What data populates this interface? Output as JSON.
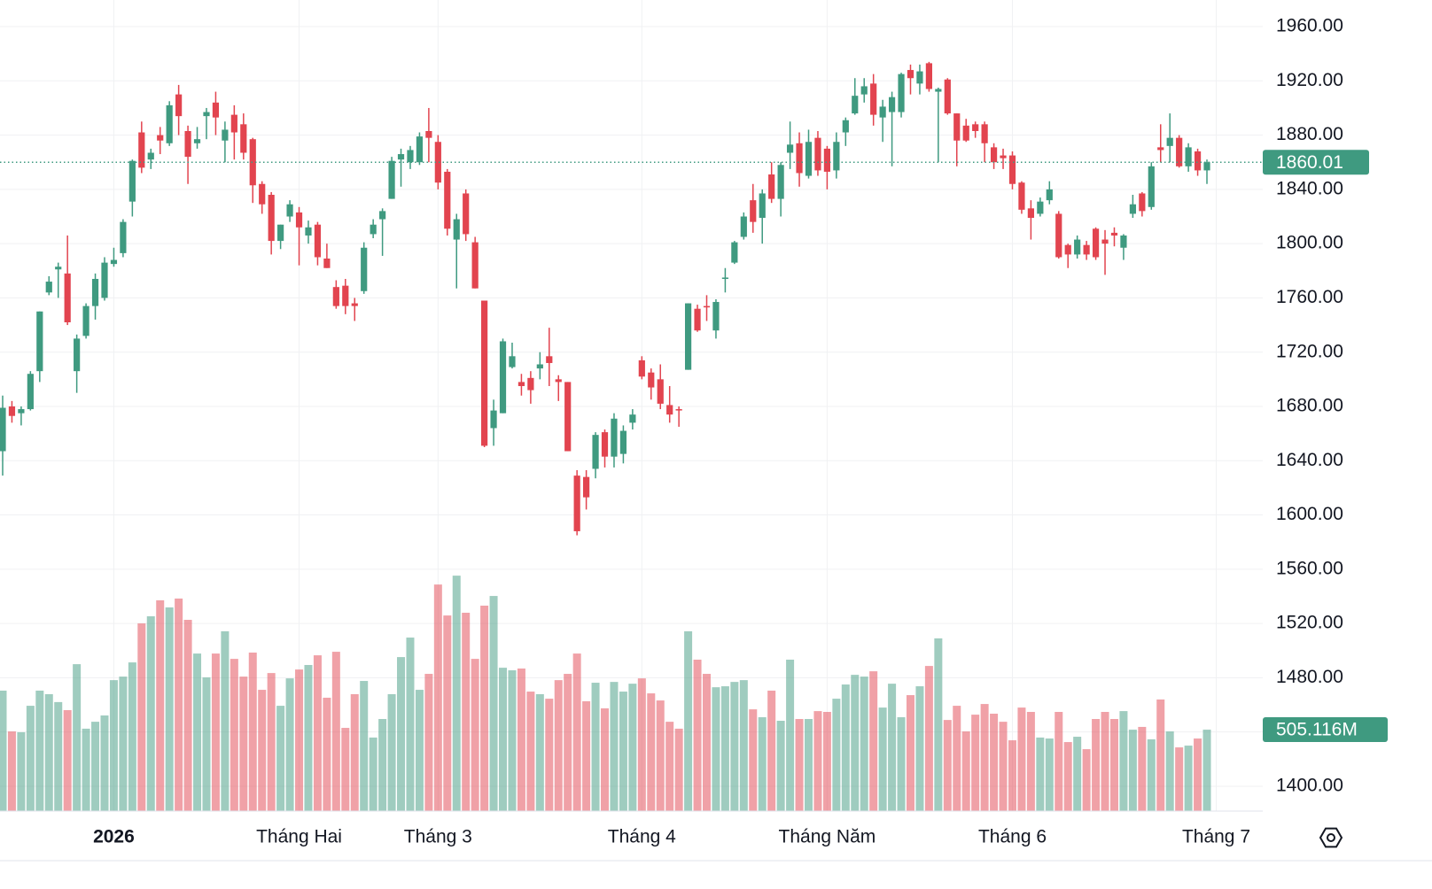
{
  "chart_data": {
    "type": "candlestick",
    "open": [
      1647,
      1680,
      1675,
      1678,
      1706,
      1764,
      1781,
      1778,
      1706,
      1732,
      1754,
      1760,
      1785,
      1793,
      1831,
      1882,
      1862,
      1880,
      1874,
      1910,
      1883,
      1874,
      1894,
      1904,
      1876,
      1895,
      1888,
      1877,
      1844,
      1836,
      1802,
      1820,
      1823,
      1806,
      1814,
      1789,
      1768,
      1769,
      1756,
      1765,
      1807,
      1818,
      1833,
      1862,
      1860,
      1860,
      1883,
      1875,
      1853,
      1803,
      1837,
      1801,
      1758,
      1664,
      1675,
      1709,
      1698,
      1701,
      1708,
      1717,
      1700,
      1698,
      1629,
      1628,
      1634,
      1661,
      1643,
      1645,
      1668,
      1714,
      1705,
      1700,
      1681,
      1678,
      1707,
      1752,
      1754,
      1736,
      1774,
      1786,
      1805,
      1832,
      1819,
      1851,
      1833,
      1867,
      1874,
      1850,
      1878,
      1870,
      1854,
      1882,
      1896,
      1910,
      1918,
      1893,
      1897,
      1897,
      1928,
      1918,
      1933,
      1912,
      1921,
      1896,
      1887,
      1888,
      1888,
      1871,
      1865,
      1865,
      1845,
      1826,
      1822,
      1832,
      1822,
      1799,
      1792,
      1799,
      1811,
      1803,
      1808,
      1797,
      1822,
      1837,
      1827,
      1871,
      1872,
      1878,
      1857,
      1868,
      1854
    ],
    "high": [
      1688,
      1684,
      1680,
      1706,
      1750,
      1776,
      1786,
      1806,
      1733,
      1756,
      1778,
      1790,
      1797,
      1818,
      1862,
      1890,
      1870,
      1886,
      1905,
      1917,
      1887,
      1886,
      1900,
      1912,
      1890,
      1902,
      1896,
      1878,
      1846,
      1838,
      1814,
      1832,
      1827,
      1817,
      1816,
      1800,
      1773,
      1774,
      1760,
      1801,
      1818,
      1826,
      1864,
      1870,
      1872,
      1882,
      1900,
      1880,
      1855,
      1822,
      1840,
      1805,
      1758,
      1685,
      1730,
      1727,
      1704,
      1706,
      1720,
      1738,
      1703,
      1698,
      1633,
      1633,
      1661,
      1663,
      1675,
      1666,
      1678,
      1717,
      1708,
      1711,
      1695,
      1680,
      1756,
      1755,
      1762,
      1759,
      1782,
      1802,
      1823,
      1844,
      1840,
      1860,
      1860,
      1890,
      1882,
      1884,
      1883,
      1872,
      1882,
      1893,
      1922,
      1922,
      1925,
      1906,
      1912,
      1926,
      1932,
      1932,
      1934,
      1915,
      1922,
      1896,
      1892,
      1890,
      1890,
      1874,
      1870,
      1868,
      1846,
      1832,
      1834,
      1846,
      1824,
      1800,
      1806,
      1802,
      1812,
      1810,
      1812,
      1807,
      1836,
      1838,
      1860,
      1888,
      1896,
      1880,
      1874,
      1870,
      1862
    ],
    "low": [
      1629,
      1668,
      1666,
      1677,
      1698,
      1762,
      1760,
      1740,
      1690,
      1730,
      1744,
      1758,
      1783,
      1790,
      1820,
      1852,
      1855,
      1866,
      1872,
      1880,
      1844,
      1870,
      1877,
      1880,
      1860,
      1862,
      1862,
      1830,
      1822,
      1792,
      1796,
      1816,
      1784,
      1800,
      1784,
      1782,
      1752,
      1748,
      1743,
      1763,
      1804,
      1791,
      1833,
      1842,
      1855,
      1858,
      1860,
      1840,
      1806,
      1767,
      1802,
      1767,
      1650,
      1651,
      1675,
      1708,
      1688,
      1682,
      1700,
      1695,
      1684,
      1647,
      1585,
      1604,
      1627,
      1635,
      1635,
      1638,
      1663,
      1700,
      1685,
      1678,
      1668,
      1665,
      1707,
      1735,
      1743,
      1730,
      1764,
      1785,
      1803,
      1808,
      1800,
      1830,
      1820,
      1855,
      1842,
      1848,
      1850,
      1840,
      1848,
      1872,
      1895,
      1904,
      1887,
      1875,
      1857,
      1893,
      1910,
      1910,
      1912,
      1860,
      1895,
      1857,
      1875,
      1878,
      1860,
      1855,
      1855,
      1840,
      1822,
      1803,
      1820,
      1829,
      1789,
      1782,
      1789,
      1788,
      1788,
      1777,
      1798,
      1788,
      1819,
      1820,
      1825,
      1860,
      1860,
      1856,
      1853,
      1850,
      1844
    ],
    "close": [
      1679,
      1673,
      1678,
      1704,
      1750,
      1772,
      1783,
      1742,
      1730,
      1754,
      1774,
      1786,
      1788,
      1816,
      1861,
      1856,
      1867,
      1876,
      1902,
      1894,
      1864,
      1877,
      1897,
      1893,
      1884,
      1882,
      1867,
      1843,
      1829,
      1802,
      1814,
      1829,
      1812,
      1812,
      1790,
      1782,
      1754,
      1754,
      1754,
      1797,
      1814,
      1824,
      1861,
      1866,
      1869,
      1879,
      1878,
      1845,
      1811,
      1818,
      1807,
      1767,
      1651,
      1677,
      1728,
      1717,
      1695,
      1692,
      1711,
      1712,
      1698,
      1647,
      1588,
      1613,
      1659,
      1643,
      1671,
      1662,
      1674,
      1702,
      1694,
      1682,
      1674,
      1677,
      1756,
      1736,
      1753,
      1757,
      1775,
      1801,
      1820,
      1816,
      1837,
      1833,
      1858,
      1873,
      1852,
      1875,
      1854,
      1853,
      1875,
      1891,
      1909,
      1916,
      1895,
      1901,
      1908,
      1925,
      1922,
      1927,
      1914,
      1914,
      1896,
      1876,
      1876,
      1883,
      1874,
      1860,
      1863,
      1844,
      1825,
      1819,
      1831,
      1840,
      1790,
      1792,
      1803,
      1792,
      1790,
      1800,
      1806,
      1806,
      1829,
      1824,
      1857,
      1869,
      1878,
      1857,
      1871,
      1854,
      1860.01
    ],
    "volume": [
      747,
      494,
      489,
      653,
      747,
      725,
      676,
      626,
      911,
      511,
      554,
      593,
      812,
      834,
      922,
      1164,
      1208,
      1307,
      1263,
      1318,
      1186,
      977,
      829,
      977,
      1115,
      944,
      834,
      983,
      752,
      856,
      653,
      823,
      878,
      906,
      966,
      703,
      988,
      516,
      725,
      807,
      456,
      571,
      725,
      955,
      1076,
      752,
      851,
      1405,
      1213,
      1460,
      1230,
      944,
      1274,
      1334,
      889,
      873,
      884,
      741,
      725,
      697,
      812,
      851,
      977,
      681,
      796,
      637,
      801,
      741,
      790,
      823,
      730,
      686,
      554,
      511,
      1115,
      939,
      851,
      768,
      774,
      801,
      812,
      631,
      582,
      747,
      560,
      939,
      571,
      571,
      620,
      615,
      697,
      785,
      845,
      834,
      867,
      642,
      790,
      582,
      719,
      774,
      900,
      1071,
      565,
      653,
      494,
      598,
      664,
      604,
      554,
      439,
      642,
      615,
      456,
      450,
      615,
      428,
      461,
      384,
      571,
      615,
      571,
      620,
      505,
      522,
      445,
      692,
      494,
      395,
      406,
      450,
      505.116
    ],
    "xticks": [
      {
        "value": 12,
        "label": "2026"
      },
      {
        "value": 32,
        "label": "Tháng Hai"
      },
      {
        "value": 47,
        "label": "Tháng 3"
      },
      {
        "value": 69,
        "label": "Tháng 4"
      },
      {
        "value": 89,
        "label": "Tháng Năm"
      },
      {
        "value": 109,
        "label": "Tháng 6"
      },
      {
        "value": 131,
        "label": "Tháng 7"
      }
    ],
    "ylim": [
      1381.7,
      1979.6
    ],
    "yticks": [
      {
        "value": 1400,
        "label": "1400.00"
      },
      {
        "value": 1440,
        "label": "1440.00"
      },
      {
        "value": 1480,
        "label": "1480.00"
      },
      {
        "value": 1520,
        "label": "1520.00"
      },
      {
        "value": 1560,
        "label": "1560.00"
      },
      {
        "value": 1600,
        "label": "1600.00"
      },
      {
        "value": 1640,
        "label": "1640.00"
      },
      {
        "value": 1680,
        "label": "1680.00"
      },
      {
        "value": 1720,
        "label": "1720.00"
      },
      {
        "value": 1760,
        "label": "1760.00"
      },
      {
        "value": 1800,
        "label": "1800.00"
      },
      {
        "value": 1840,
        "label": "1840.00"
      },
      {
        "value": 1880,
        "label": "1880.00"
      },
      {
        "value": 1920,
        "label": "1920.00"
      },
      {
        "value": 1960,
        "label": "1960.00"
      }
    ],
    "volume_ylim": [
      0,
      5030
    ],
    "last_price": 1860.01,
    "last_volume": {
      "value": 505.116,
      "label": "505.116M"
    },
    "up_color": "#3f9a80",
    "down_color": "#e2444f",
    "grid": true
  }
}
